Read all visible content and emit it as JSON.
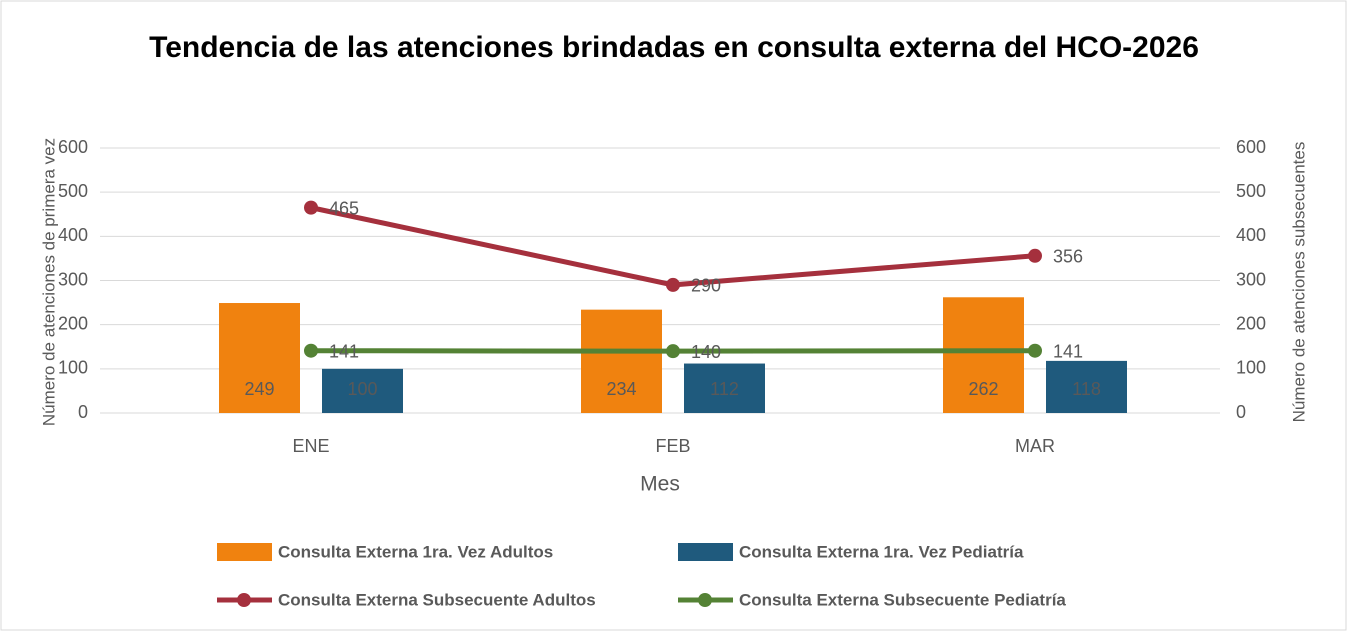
{
  "chart_data": {
    "type": "bar",
    "title": "Tendencia de las atenciones brindadas en consulta externa del HCO-2026",
    "x_label": "Mes",
    "y_label": "Número de atenciones de primera vez",
    "y2_label": "Número de atenciones subsecuentes",
    "categories": [
      "ENE",
      "FEB",
      "MAR"
    ],
    "series": [
      {
        "name": "Consulta Externa 1ra. Vez Adultos",
        "type": "bar",
        "color": "#f0820f",
        "values": [
          249,
          234,
          262
        ]
      },
      {
        "name": "Consulta Externa 1ra. Vez Pediatría",
        "type": "bar",
        "color": "#1f5a7d",
        "values": [
          100,
          112,
          118
        ]
      },
      {
        "name": "Consulta Externa Subsecuente Adultos",
        "type": "line",
        "axis": "y2",
        "color": "#a5303d",
        "values": [
          465,
          290,
          356
        ]
      },
      {
        "name": "Consulta Externa Subsecuente Pediatría",
        "type": "line",
        "axis": "y2",
        "color": "#548235",
        "values": [
          141,
          140,
          141
        ]
      }
    ],
    "ylim": [
      0,
      600
    ],
    "yticks": [
      0,
      100,
      200,
      300,
      400,
      500,
      600
    ],
    "y2lim": [
      0,
      600
    ],
    "y2ticks": [
      0,
      100,
      200,
      300,
      400,
      500,
      600
    ],
    "grid": true,
    "legend": "bottom"
  }
}
